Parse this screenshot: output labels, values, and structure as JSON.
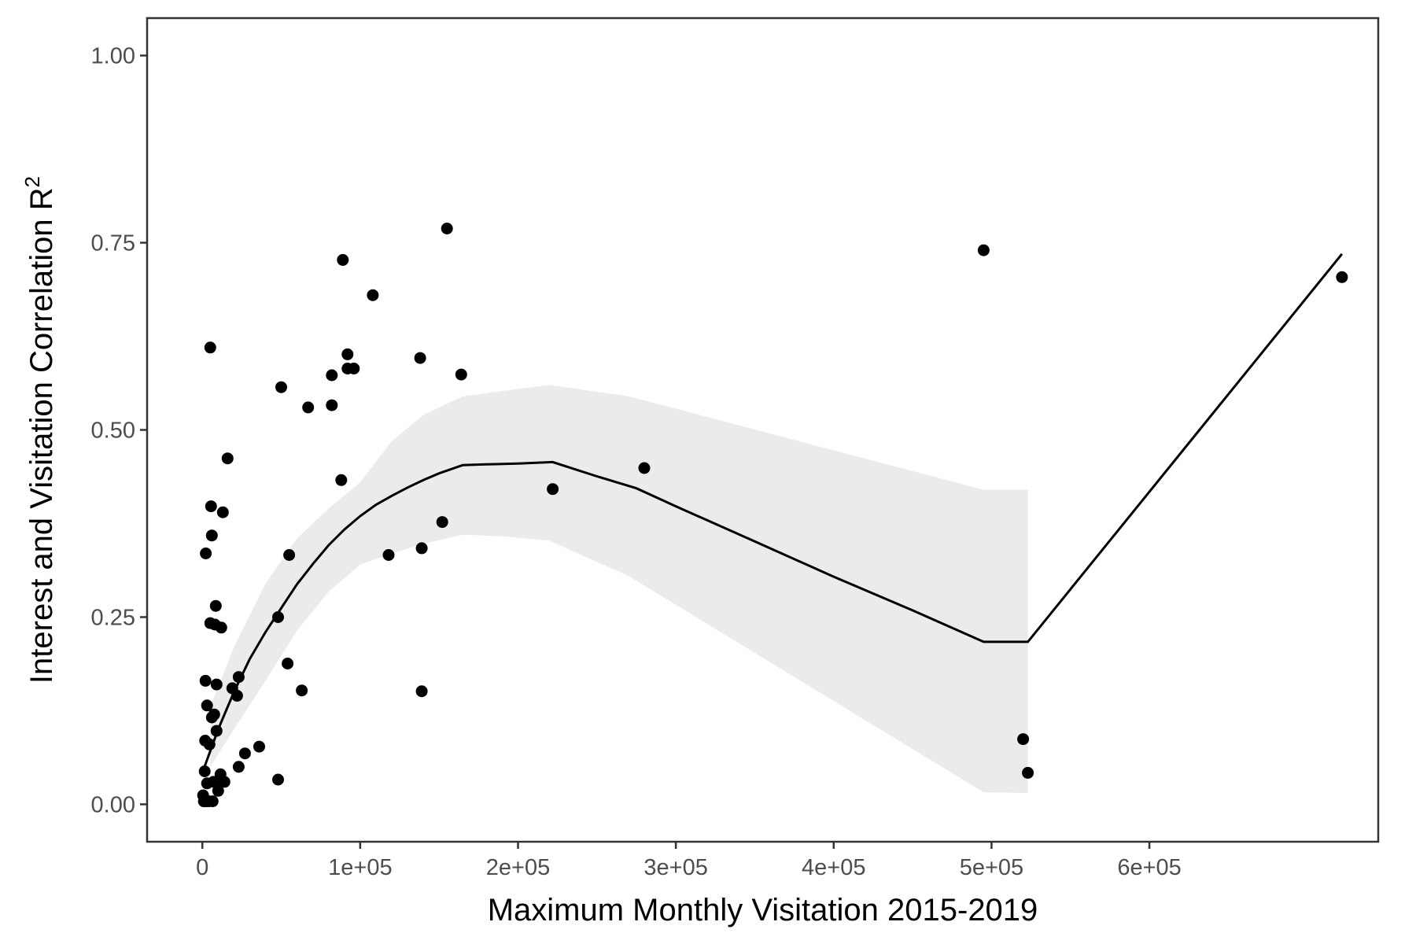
{
  "chart_data": {
    "type": "scatter",
    "title": "",
    "xlabel": "Maximum Monthly Visitation 2015-2019",
    "ylabel": "Interest and Visitation Correlation R",
    "ylabel_superscript": "2",
    "xlim": [
      -35000,
      745000
    ],
    "ylim": [
      -0.05,
      1.05
    ],
    "x_ticks": [
      0,
      100000,
      200000,
      300000,
      400000,
      500000,
      600000
    ],
    "x_tick_labels": [
      "0",
      "1e+05",
      "2e+05",
      "3e+05",
      "4e+05",
      "5e+05",
      "6e+05"
    ],
    "y_ticks": [
      0.0,
      0.25,
      0.5,
      0.75,
      1.0
    ],
    "y_tick_labels": [
      "0.00",
      "0.25",
      "0.50",
      "0.75",
      "1.00"
    ],
    "grid": false,
    "legend": "none",
    "colors": {
      "points": "#000000",
      "trend_line": "#000000",
      "confidence_band": "#ebebeb",
      "axis": "#333333"
    },
    "points": [
      {
        "x": 500,
        "y": 0.012
      },
      {
        "x": 1000,
        "y": 0.004
      },
      {
        "x": 1500,
        "y": 0.044
      },
      {
        "x": 1800,
        "y": 0.085
      },
      {
        "x": 2000,
        "y": 0.165
      },
      {
        "x": 2200,
        "y": 0.335
      },
      {
        "x": 2500,
        "y": 0.004
      },
      {
        "x": 3000,
        "y": 0.132
      },
      {
        "x": 3000,
        "y": 0.028
      },
      {
        "x": 4000,
        "y": 0.004
      },
      {
        "x": 4500,
        "y": 0.08
      },
      {
        "x": 5000,
        "y": 0.61
      },
      {
        "x": 5000,
        "y": 0.242
      },
      {
        "x": 5500,
        "y": 0.398
      },
      {
        "x": 6000,
        "y": 0.359
      },
      {
        "x": 6000,
        "y": 0.116
      },
      {
        "x": 6500,
        "y": 0.004
      },
      {
        "x": 7000,
        "y": 0.03
      },
      {
        "x": 7500,
        "y": 0.12
      },
      {
        "x": 8000,
        "y": 0.24
      },
      {
        "x": 8500,
        "y": 0.265
      },
      {
        "x": 9000,
        "y": 0.16
      },
      {
        "x": 9000,
        "y": 0.098
      },
      {
        "x": 10000,
        "y": 0.018
      },
      {
        "x": 11000,
        "y": 0.03
      },
      {
        "x": 11500,
        "y": 0.04
      },
      {
        "x": 12000,
        "y": 0.236
      },
      {
        "x": 13000,
        "y": 0.39
      },
      {
        "x": 14000,
        "y": 0.03
      },
      {
        "x": 16000,
        "y": 0.462
      },
      {
        "x": 19000,
        "y": 0.155
      },
      {
        "x": 22000,
        "y": 0.145
      },
      {
        "x": 23000,
        "y": 0.17
      },
      {
        "x": 23000,
        "y": 0.05
      },
      {
        "x": 27000,
        "y": 0.068
      },
      {
        "x": 36000,
        "y": 0.077
      },
      {
        "x": 48000,
        "y": 0.033
      },
      {
        "x": 48000,
        "y": 0.25
      },
      {
        "x": 50000,
        "y": 0.557
      },
      {
        "x": 54000,
        "y": 0.188
      },
      {
        "x": 55000,
        "y": 0.333
      },
      {
        "x": 63000,
        "y": 0.152
      },
      {
        "x": 67000,
        "y": 0.53
      },
      {
        "x": 82000,
        "y": 0.533
      },
      {
        "x": 82000,
        "y": 0.573
      },
      {
        "x": 88000,
        "y": 0.433
      },
      {
        "x": 89000,
        "y": 0.727
      },
      {
        "x": 92000,
        "y": 0.582
      },
      {
        "x": 92000,
        "y": 0.601
      },
      {
        "x": 96000,
        "y": 0.582
      },
      {
        "x": 108000,
        "y": 0.68
      },
      {
        "x": 118000,
        "y": 0.333
      },
      {
        "x": 138000,
        "y": 0.596
      },
      {
        "x": 139000,
        "y": 0.342
      },
      {
        "x": 139000,
        "y": 0.151
      },
      {
        "x": 152000,
        "y": 0.377
      },
      {
        "x": 155000,
        "y": 0.769
      },
      {
        "x": 164000,
        "y": 0.574
      },
      {
        "x": 222000,
        "y": 0.421
      },
      {
        "x": 280000,
        "y": 0.449
      },
      {
        "x": 495000,
        "y": 0.74
      },
      {
        "x": 520000,
        "y": 0.087
      },
      {
        "x": 523000,
        "y": 0.042
      },
      {
        "x": 722000,
        "y": 0.704
      }
    ],
    "trend_line": {
      "x": [
        500,
        10000,
        20000,
        30000,
        40000,
        50000,
        60000,
        70000,
        80000,
        90000,
        100000,
        110000,
        120000,
        130000,
        140000,
        150000,
        165000,
        180000,
        200000,
        222000,
        250000,
        275000,
        300000,
        350000,
        400000,
        450000,
        495000,
        523000,
        722000
      ],
      "y": [
        0.045,
        0.1,
        0.15,
        0.194,
        0.23,
        0.262,
        0.294,
        0.321,
        0.346,
        0.367,
        0.385,
        0.4,
        0.412,
        0.423,
        0.433,
        0.442,
        0.453,
        0.454,
        0.455,
        0.457,
        0.438,
        0.422,
        0.398,
        0.351,
        0.304,
        0.259,
        0.217,
        0.217,
        0.735
      ]
    },
    "confidence_band": {
      "x": [
        5000,
        20000,
        40000,
        60000,
        80000,
        100000,
        120000,
        140000,
        165000,
        190000,
        220000,
        270000,
        495000,
        523000
      ],
      "upper": [
        0.13,
        0.21,
        0.295,
        0.355,
        0.395,
        0.43,
        0.485,
        0.52,
        0.545,
        0.552,
        0.56,
        0.545,
        0.42,
        0.42
      ],
      "lower": [
        0.05,
        0.1,
        0.165,
        0.232,
        0.284,
        0.32,
        0.335,
        0.348,
        0.36,
        0.358,
        0.352,
        0.305,
        0.016,
        0.015
      ]
    }
  }
}
